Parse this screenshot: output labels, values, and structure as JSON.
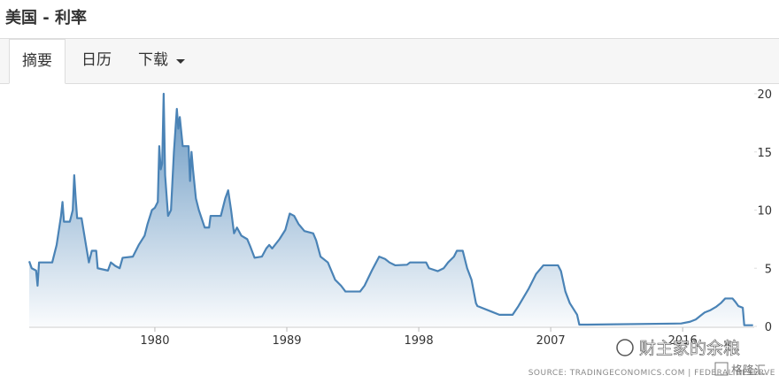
{
  "page": {
    "title": "美国 - 利率",
    "tabs": [
      "摘要",
      "日历",
      "下载"
    ]
  },
  "watermark": {
    "account": "财主家的余粮",
    "brand": "格隆汇"
  },
  "chart_data": {
    "type": "area",
    "source": "SOURCE: TRADINGECONOMICS.COM | FEDERAL RESERVE",
    "color": "#4a83b6",
    "x": [
      1971.43,
      1971.6,
      1971.9,
      1972.0,
      1972.1,
      1973.0,
      1973.3,
      1973.6,
      1973.7,
      1973.8,
      1974.2,
      1974.4,
      1974.5,
      1974.6,
      1974.7,
      1975.0,
      1975.3,
      1975.5,
      1975.7,
      1976.0,
      1976.1,
      1976.8,
      1977.0,
      1977.3,
      1977.6,
      1977.8,
      1978.5,
      1978.9,
      1979.3,
      1979.5,
      1979.8,
      1980.0,
      1980.2,
      1980.3,
      1980.4,
      1980.5,
      1980.6,
      1980.7,
      1980.9,
      1981.1,
      1981.3,
      1981.5,
      1981.6,
      1981.7,
      1981.9,
      1982.1,
      1982.3,
      1982.4,
      1982.5,
      1982.6,
      1982.8,
      1983.0,
      1983.4,
      1983.7,
      1983.8,
      1984.5,
      1984.8,
      1985.0,
      1985.2,
      1985.4,
      1985.6,
      1985.9,
      1986.3,
      1986.5,
      1986.8,
      1987.3,
      1987.6,
      1987.8,
      1988.0,
      1988.5,
      1988.9,
      1989.2,
      1989.5,
      1989.8,
      1990.2,
      1990.8,
      1991.0,
      1991.3,
      1991.8,
      1992.3,
      1992.7,
      1993.0,
      1994.0,
      1994.3,
      1994.8,
      1995.3,
      1995.7,
      1996.0,
      1996.4,
      1997.2,
      1997.4,
      1998.5,
      1998.7,
      1999.3,
      1999.7,
      2000.0,
      2000.4,
      2000.6,
      2001.0,
      2001.3,
      2001.6,
      2001.9,
      2002.0,
      2003.0,
      2003.5,
      2004.4,
      2004.8,
      2005.5,
      2006.0,
      2006.5,
      2007.5,
      2007.7,
      2008.0,
      2008.3,
      2008.8,
      2008.95,
      2009.5,
      2015.9,
      2016.5,
      2016.9,
      2017.2,
      2017.5,
      2017.9,
      2018.3,
      2018.6,
      2018.9,
      2019.4,
      2019.6,
      2019.8,
      2020.1,
      2020.2,
      2020.8
    ],
    "values": [
      5.6,
      5.0,
      4.8,
      3.5,
      5.5,
      5.5,
      7,
      9.5,
      10.7,
      9,
      9,
      10,
      13,
      11,
      9.3,
      9.3,
      7,
      5.5,
      6.5,
      6.5,
      5,
      4.8,
      5.5,
      5.2,
      5,
      5.9,
      6,
      7,
      7.8,
      8.8,
      10,
      10.2,
      10.7,
      15.5,
      13.5,
      14,
      20,
      13,
      9.5,
      10,
      15,
      18.7,
      17,
      18,
      15.5,
      15.5,
      15.5,
      12.5,
      15,
      13.5,
      11,
      10,
      8.5,
      8.5,
      9.5,
      9.5,
      11,
      11.7,
      10,
      8,
      8.5,
      7.8,
      7.5,
      6.9,
      5.9,
      6,
      6.7,
      7,
      6.7,
      7.5,
      8.3,
      9.7,
      9.5,
      8.8,
      8.2,
      8,
      7.4,
      6,
      5.5,
      4,
      3.5,
      3,
      3,
      3.5,
      4.8,
      6,
      5.8,
      5.5,
      5.25,
      5.3,
      5.5,
      5.5,
      5,
      4.75,
      5,
      5.5,
      6,
      6.5,
      6.5,
      5,
      4,
      2,
      1.75,
      1.25,
      1,
      1,
      1.75,
      3.25,
      4.5,
      5.25,
      5.25,
      4.75,
      3,
      2,
      1,
      0.15,
      0.15,
      0.25,
      0.4,
      0.6,
      0.9,
      1.2,
      1.4,
      1.7,
      2,
      2.4,
      2.4,
      2.1,
      1.75,
      1.6,
      0.1,
      0.1
    ],
    "xlim": [
      1971.43,
      2020.88
    ],
    "xticks": [
      1980,
      1989,
      1998,
      2007,
      2016
    ],
    "ylim": [
      0,
      20
    ],
    "yticks": [
      0,
      5,
      10,
      15,
      20
    ]
  }
}
